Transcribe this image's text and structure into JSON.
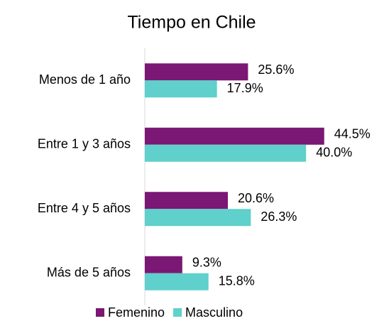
{
  "chart_data": {
    "type": "bar",
    "orientation": "horizontal",
    "title": "Tiempo en Chile",
    "categories": [
      "Menos de 1 año",
      "Entre 1 y 3 años",
      "Entre 4 y 5 años",
      "Más de 5 años"
    ],
    "series": [
      {
        "name": "Femenino",
        "color": "#7b1774",
        "values": [
          25.6,
          44.5,
          20.6,
          9.3
        ],
        "value_labels": [
          "25.6%",
          "44.5%",
          "20.6%",
          "9.3%"
        ]
      },
      {
        "name": "Masculino",
        "color": "#5fd0cc",
        "values": [
          17.9,
          40.0,
          26.3,
          15.8
        ],
        "value_labels": [
          "17.9%",
          "40.0%",
          "26.3%",
          "15.8%"
        ]
      }
    ],
    "legend": "bottom"
  }
}
